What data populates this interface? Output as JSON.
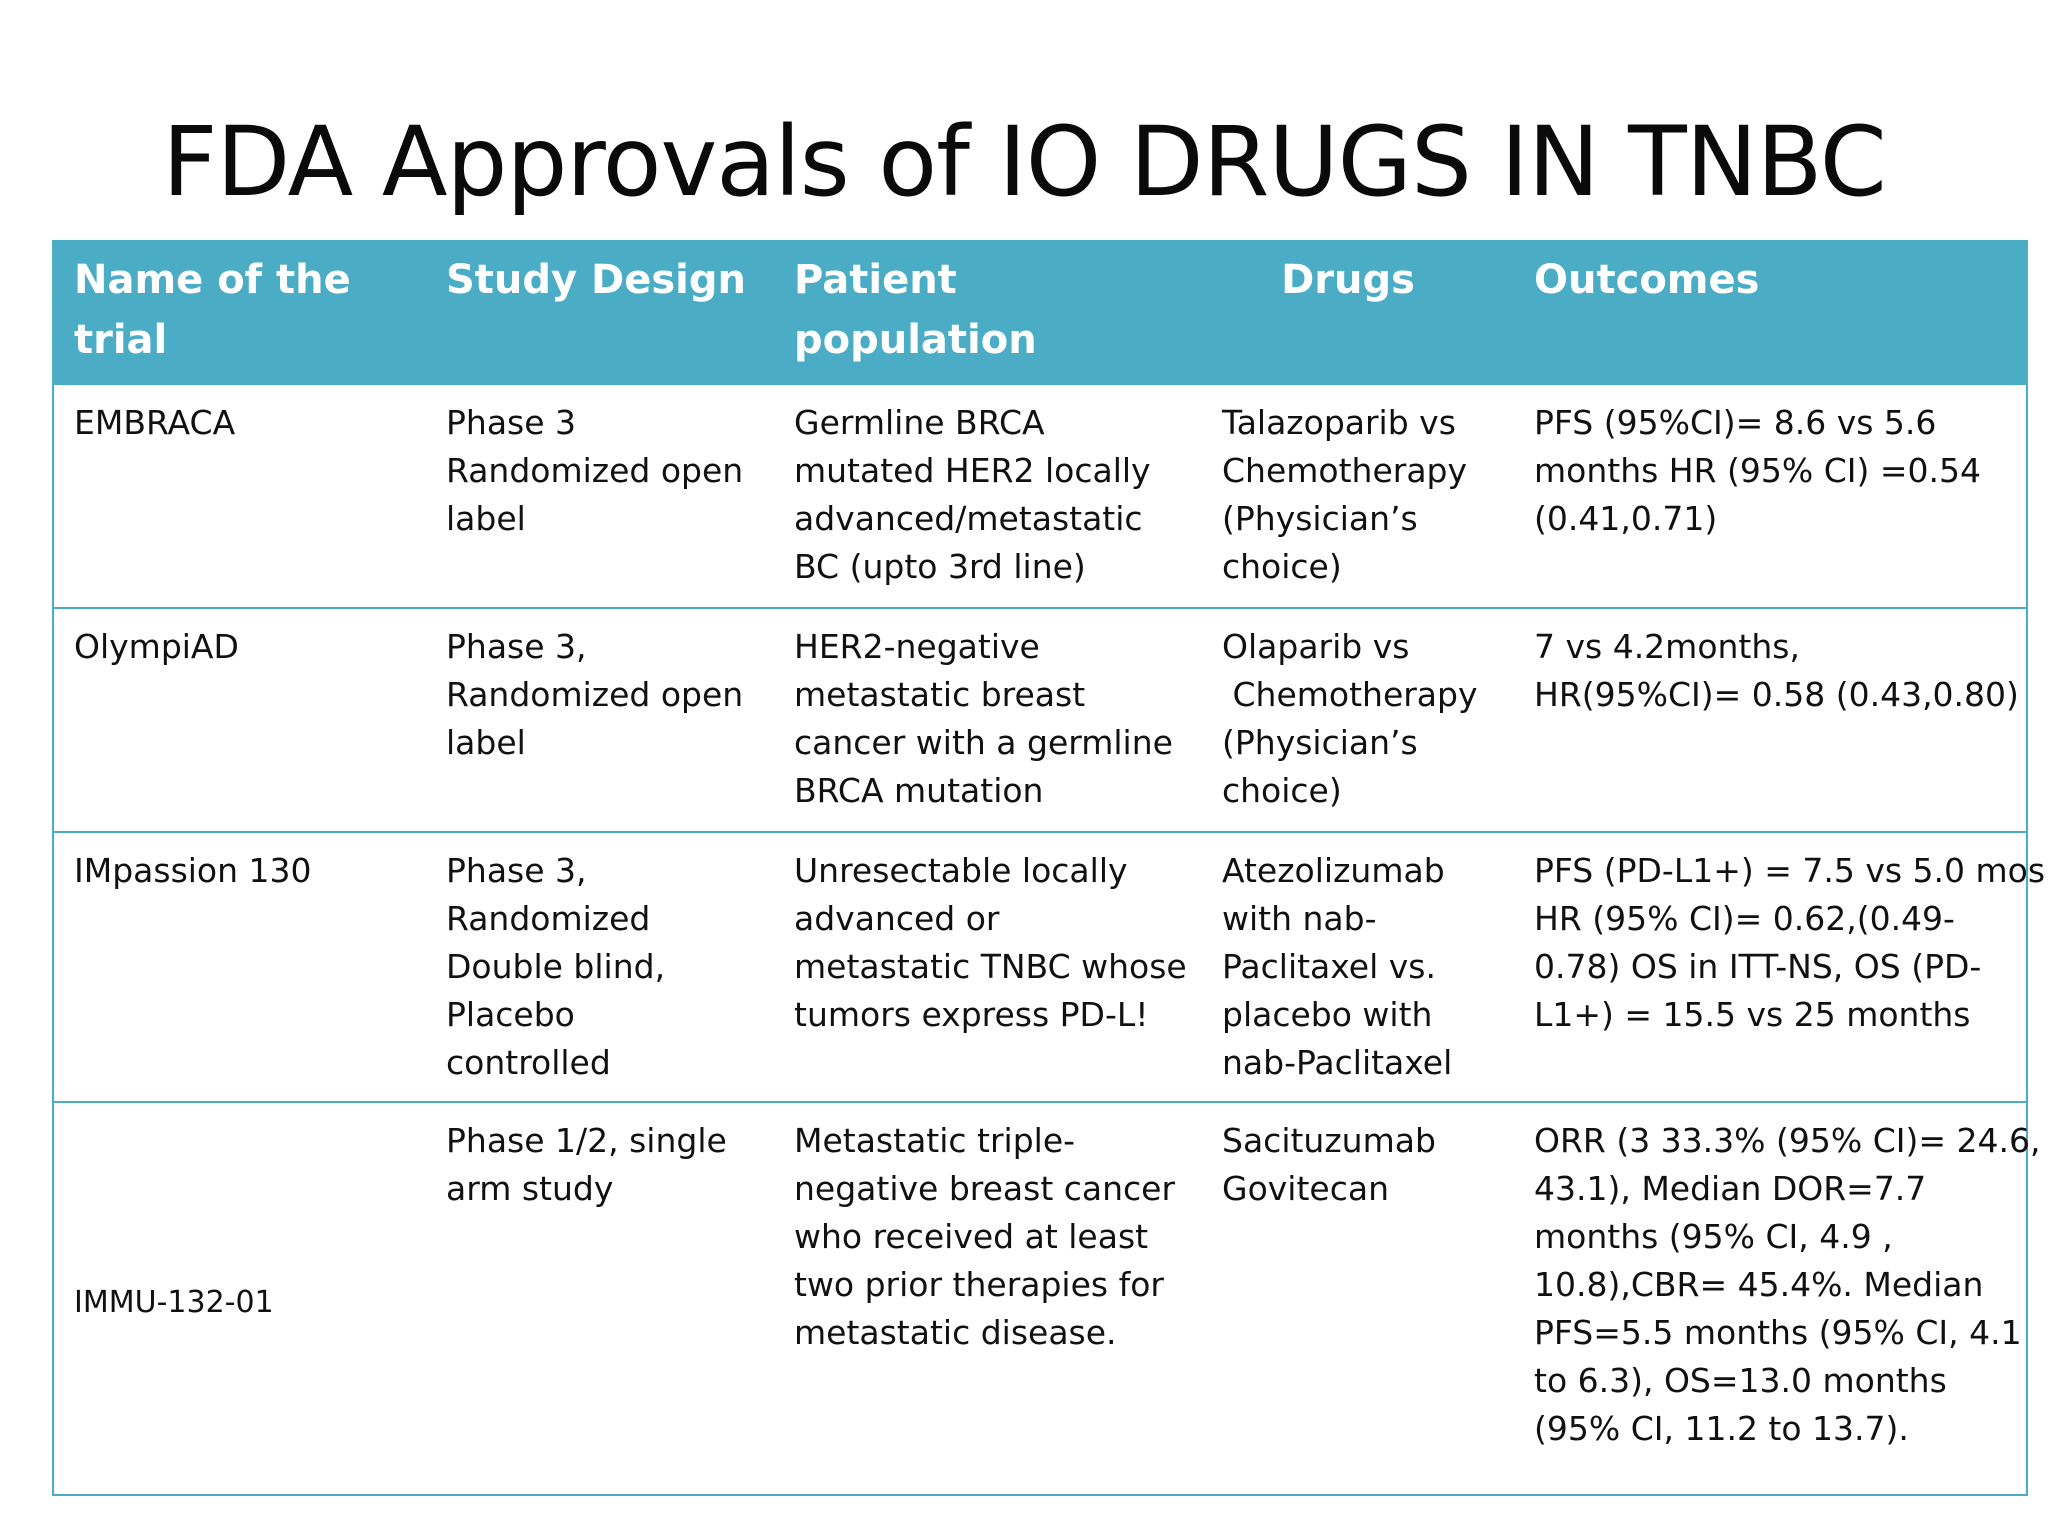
{
  "slide": {
    "title": "FDA Approvals of IO DRUGS IN TNBC"
  },
  "table": {
    "headers": [
      "Name of the trial",
      "Study Design",
      "Patient population",
      "Drugs",
      "Outcomes"
    ],
    "rows": [
      {
        "trial": "EMBRACA",
        "design": [
          "Phase 3",
          "Randomized open",
          "label"
        ],
        "population": [
          "Germline BRCA",
          "mutated HER2 locally",
          "advanced/metastatic",
          "BC (upto 3rd line)"
        ],
        "drugs": [
          "Talazoparib vs",
          "Chemotherapy",
          "(Physician’s",
          "choice)"
        ],
        "outcomes": [
          "PFS (95%CI)= 8.6 vs 5.6",
          "months HR (95% CI) =0.54",
          "(0.41,0.71)"
        ]
      },
      {
        "trial": "OlympiAD",
        "design": [
          "Phase 3,",
          "Randomized open",
          "label"
        ],
        "population": [
          "HER2-negative",
          "metastatic breast",
          "cancer with a germline",
          "BRCA mutation"
        ],
        "drugs": [
          "Olaparib vs",
          " Chemotherapy",
          "(Physician’s",
          "choice)"
        ],
        "outcomes": [
          "7 vs 4.2months,",
          "HR(95%CI)= 0.58 (0.43,0.80)"
        ]
      },
      {
        "trial": "IMpassion 130",
        "design": [
          "Phase 3,",
          "Randomized",
          "Double blind,",
          "Placebo",
          "controlled"
        ],
        "population": [
          "Unresectable locally",
          "advanced or",
          "metastatic TNBC whose",
          "tumors express PD-L!"
        ],
        "drugs": [
          "Atezolizumab",
          "with nab-",
          "Paclitaxel  vs.",
          "placebo with",
          "nab-Paclitaxel"
        ],
        "outcomes": [
          "PFS (PD-L1+) = 7.5 vs 5.0 mos",
          "HR (95% CI)= 0.62,(0.49-",
          "0.78) OS in ITT-NS, OS (PD-",
          "L1+) = 15.5 vs 25 months"
        ]
      },
      {
        "trial": "IMMU-132-01",
        "design": [
          "Phase 1/2, single",
          "arm study"
        ],
        "population": [
          "Metastatic triple-",
          "negative breast cancer",
          "who received at least",
          "two prior therapies for",
          "metastatic disease."
        ],
        "drugs": [
          "Sacituzumab",
          "Govitecan"
        ],
        "outcomes": [
          "ORR (3 33.3% (95% CI)= 24.6,",
          "43.1), Median  DOR=7.7",
          "months (95% CI, 4.9 ,",
          "10.8),CBR= 45.4%. Median",
          "PFS=5.5 months (95% CI, 4.1",
          "to 6.3), OS=13.0 months",
          "(95% CI, 11.2 to 13.7)."
        ]
      }
    ]
  },
  "colors": {
    "header_bg": "#4bacc6",
    "header_text": "#ffffff",
    "border": "#4bacc6"
  }
}
